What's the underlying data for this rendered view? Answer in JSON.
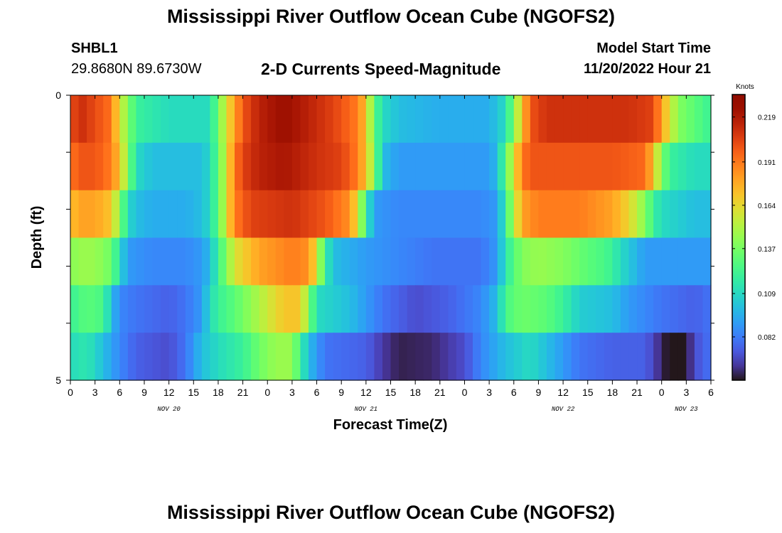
{
  "title": "Mississippi River Outflow Ocean Cube (NGOFS2)",
  "station": {
    "id": "SHBL1",
    "location": "29.8680N  89.6730W"
  },
  "model_start": {
    "label": "Model Start Time",
    "value": "11/20/2022 Hour 21"
  },
  "colors": {
    "colormap": "turbo",
    "background": "#ffffff"
  },
  "chart_data": {
    "type": "heatmap",
    "title": "2-D Currents Speed-Magnitude",
    "xlabel": "Forecast Time(Z)",
    "ylabel": "Depth (ft)",
    "y_tick_labels": [
      "0",
      "5"
    ],
    "y_range": [
      0,
      5
    ],
    "x_tick_labels": [
      "0",
      "3",
      "6",
      "9",
      "12",
      "15",
      "18",
      "21",
      "0",
      "3",
      "6",
      "9",
      "12",
      "15",
      "18",
      "21",
      "0",
      "3",
      "6",
      "9",
      "12",
      "15",
      "18",
      "21",
      "0",
      "3",
      "6"
    ],
    "x_range_hours": [
      0,
      78
    ],
    "day_labels": [
      {
        "label": "NOV 20",
        "hour": 12
      },
      {
        "label": "NOV 21",
        "hour": 36
      },
      {
        "label": "NOV 22",
        "hour": 60
      },
      {
        "label": "NOV 23",
        "hour": 75
      }
    ],
    "colorbar": {
      "unit": "Knots",
      "min": 0.055,
      "max": 0.233,
      "ticks": [
        0.219,
        0.191,
        0.164,
        0.137,
        0.109,
        0.082
      ]
    },
    "depth_layers": [
      {
        "name": "layer 1",
        "control_points": [
          [
            0,
            0.2
          ],
          [
            1,
            0.21
          ],
          [
            2,
            0.21
          ],
          [
            3,
            0.2
          ],
          [
            4,
            0.2
          ],
          [
            5,
            0.19
          ],
          [
            6,
            0.16
          ],
          [
            7,
            0.14
          ],
          [
            8,
            0.12
          ],
          [
            10,
            0.115
          ],
          [
            12,
            0.11
          ],
          [
            14,
            0.11
          ],
          [
            16,
            0.11
          ],
          [
            17,
            0.11
          ],
          [
            18,
            0.135
          ],
          [
            19,
            0.16
          ],
          [
            20,
            0.18
          ],
          [
            21,
            0.2
          ],
          [
            23,
            0.215
          ],
          [
            26,
            0.225
          ],
          [
            29,
            0.215
          ],
          [
            32,
            0.205
          ],
          [
            35,
            0.19
          ],
          [
            36,
            0.17
          ],
          [
            37,
            0.13
          ],
          [
            38,
            0.11
          ],
          [
            40,
            0.1
          ],
          [
            45,
            0.095
          ],
          [
            48,
            0.095
          ],
          [
            51,
            0.095
          ],
          [
            53,
            0.11
          ],
          [
            54,
            0.14
          ],
          [
            55,
            0.17
          ],
          [
            56,
            0.2
          ],
          [
            58,
            0.21
          ],
          [
            63,
            0.21
          ],
          [
            68,
            0.21
          ],
          [
            71,
            0.205
          ],
          [
            72,
            0.18
          ],
          [
            73,
            0.16
          ],
          [
            74,
            0.14
          ],
          [
            76,
            0.13
          ],
          [
            78,
            0.12
          ]
        ]
      },
      {
        "name": "layer 2",
        "control_points": [
          [
            0,
            0.19
          ],
          [
            1,
            0.2
          ],
          [
            3,
            0.2
          ],
          [
            5,
            0.19
          ],
          [
            6,
            0.17
          ],
          [
            7,
            0.14
          ],
          [
            8,
            0.11
          ],
          [
            10,
            0.1
          ],
          [
            14,
            0.1
          ],
          [
            16,
            0.1
          ],
          [
            17,
            0.11
          ],
          [
            18,
            0.13
          ],
          [
            19,
            0.16
          ],
          [
            20,
            0.19
          ],
          [
            21,
            0.205
          ],
          [
            23,
            0.215
          ],
          [
            26,
            0.22
          ],
          [
            30,
            0.21
          ],
          [
            33,
            0.205
          ],
          [
            35,
            0.19
          ],
          [
            36,
            0.17
          ],
          [
            37,
            0.14
          ],
          [
            38,
            0.1
          ],
          [
            40,
            0.09
          ],
          [
            48,
            0.09
          ],
          [
            51,
            0.09
          ],
          [
            52,
            0.1
          ],
          [
            53,
            0.13
          ],
          [
            54,
            0.16
          ],
          [
            55,
            0.19
          ],
          [
            56,
            0.2
          ],
          [
            60,
            0.2
          ],
          [
            66,
            0.2
          ],
          [
            70,
            0.195
          ],
          [
            71,
            0.17
          ],
          [
            72,
            0.14
          ],
          [
            73,
            0.12
          ],
          [
            76,
            0.11
          ],
          [
            78,
            0.11
          ]
        ]
      },
      {
        "name": "layer 3",
        "control_points": [
          [
            0,
            0.17
          ],
          [
            1,
            0.18
          ],
          [
            3,
            0.18
          ],
          [
            5,
            0.17
          ],
          [
            6,
            0.14
          ],
          [
            7,
            0.11
          ],
          [
            8,
            0.1
          ],
          [
            10,
            0.095
          ],
          [
            14,
            0.095
          ],
          [
            16,
            0.1
          ],
          [
            17,
            0.11
          ],
          [
            18,
            0.13
          ],
          [
            19,
            0.16
          ],
          [
            20,
            0.19
          ],
          [
            22,
            0.205
          ],
          [
            27,
            0.21
          ],
          [
            31,
            0.2
          ],
          [
            34,
            0.185
          ],
          [
            35,
            0.16
          ],
          [
            36,
            0.12
          ],
          [
            37,
            0.09
          ],
          [
            40,
            0.085
          ],
          [
            48,
            0.085
          ],
          [
            50,
            0.085
          ],
          [
            52,
            0.09
          ],
          [
            53,
            0.12
          ],
          [
            54,
            0.15
          ],
          [
            55,
            0.18
          ],
          [
            57,
            0.19
          ],
          [
            62,
            0.19
          ],
          [
            66,
            0.18
          ],
          [
            68,
            0.165
          ],
          [
            70,
            0.14
          ],
          [
            71,
            0.12
          ],
          [
            72,
            0.11
          ],
          [
            76,
            0.1
          ],
          [
            78,
            0.1
          ]
        ]
      },
      {
        "name": "layer 4",
        "control_points": [
          [
            0,
            0.14
          ],
          [
            1,
            0.145
          ],
          [
            3,
            0.145
          ],
          [
            5,
            0.135
          ],
          [
            6,
            0.11
          ],
          [
            7,
            0.09
          ],
          [
            10,
            0.085
          ],
          [
            14,
            0.085
          ],
          [
            16,
            0.09
          ],
          [
            17,
            0.1
          ],
          [
            18,
            0.12
          ],
          [
            19,
            0.14
          ],
          [
            20,
            0.16
          ],
          [
            23,
            0.18
          ],
          [
            27,
            0.19
          ],
          [
            29,
            0.185
          ],
          [
            30,
            0.16
          ],
          [
            31,
            0.12
          ],
          [
            32,
            0.1
          ],
          [
            36,
            0.09
          ],
          [
            40,
            0.085
          ],
          [
            44,
            0.08
          ],
          [
            48,
            0.08
          ],
          [
            50,
            0.08
          ],
          [
            52,
            0.09
          ],
          [
            53,
            0.115
          ],
          [
            55,
            0.14
          ],
          [
            57,
            0.145
          ],
          [
            60,
            0.14
          ],
          [
            63,
            0.13
          ],
          [
            65,
            0.125
          ],
          [
            66,
            0.12
          ],
          [
            67,
            0.11
          ],
          [
            70,
            0.09
          ],
          [
            74,
            0.09
          ],
          [
            78,
            0.09
          ]
        ]
      },
      {
        "name": "layer 5",
        "control_points": [
          [
            0,
            0.12
          ],
          [
            2,
            0.13
          ],
          [
            4,
            0.125
          ],
          [
            5,
            0.1
          ],
          [
            6,
            0.085
          ],
          [
            8,
            0.08
          ],
          [
            12,
            0.075
          ],
          [
            14,
            0.08
          ],
          [
            16,
            0.09
          ],
          [
            17,
            0.11
          ],
          [
            18,
            0.12
          ],
          [
            20,
            0.13
          ],
          [
            23,
            0.15
          ],
          [
            26,
            0.17
          ],
          [
            28,
            0.17
          ],
          [
            29,
            0.14
          ],
          [
            30,
            0.11
          ],
          [
            34,
            0.1
          ],
          [
            38,
            0.08
          ],
          [
            42,
            0.07
          ],
          [
            46,
            0.075
          ],
          [
            50,
            0.085
          ],
          [
            52,
            0.1
          ],
          [
            53,
            0.125
          ],
          [
            55,
            0.135
          ],
          [
            58,
            0.13
          ],
          [
            60,
            0.12
          ],
          [
            62,
            0.105
          ],
          [
            66,
            0.1
          ],
          [
            68,
            0.09
          ],
          [
            72,
            0.08
          ],
          [
            76,
            0.075
          ],
          [
            78,
            0.08
          ]
        ]
      },
      {
        "name": "layer 6",
        "control_points": [
          [
            0,
            0.11
          ],
          [
            2,
            0.115
          ],
          [
            4,
            0.1
          ],
          [
            6,
            0.085
          ],
          [
            8,
            0.075
          ],
          [
            12,
            0.07
          ],
          [
            14,
            0.08
          ],
          [
            16,
            0.1
          ],
          [
            18,
            0.11
          ],
          [
            21,
            0.12
          ],
          [
            23,
            0.135
          ],
          [
            25,
            0.145
          ],
          [
            27,
            0.145
          ],
          [
            28,
            0.12
          ],
          [
            29,
            0.1
          ],
          [
            31,
            0.08
          ],
          [
            36,
            0.075
          ],
          [
            38,
            0.065
          ],
          [
            40,
            0.058
          ],
          [
            44,
            0.06
          ],
          [
            48,
            0.07
          ],
          [
            50,
            0.085
          ],
          [
            53,
            0.1
          ],
          [
            56,
            0.11
          ],
          [
            59,
            0.095
          ],
          [
            62,
            0.08
          ],
          [
            66,
            0.075
          ],
          [
            70,
            0.075
          ],
          [
            72,
            0.06
          ],
          [
            74,
            0.045
          ],
          [
            75,
            0.055
          ],
          [
            76,
            0.07
          ],
          [
            78,
            0.08
          ]
        ]
      }
    ]
  }
}
